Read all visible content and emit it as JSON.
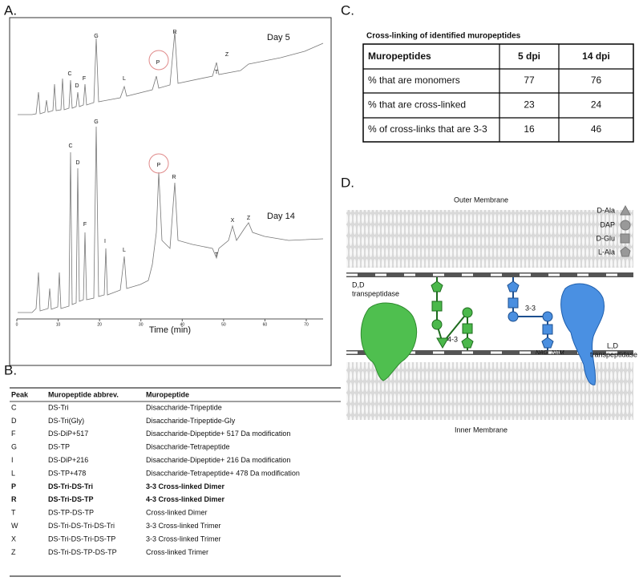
{
  "panel_a": {
    "label": "A.",
    "traces": [
      {
        "name": "Day 5",
        "peaks": [
          "C",
          "D",
          "F",
          "G",
          "L",
          "P",
          "R",
          "T",
          "Z"
        ]
      },
      {
        "name": "Day 14",
        "peaks": [
          "G",
          "C",
          "D",
          "P",
          "R",
          "F",
          "I",
          "L",
          "T",
          "X",
          "Z"
        ]
      }
    ],
    "x_axis": {
      "label": "Time (min)",
      "ticks": [
        0,
        10,
        20,
        30,
        40,
        50,
        60,
        70
      ]
    }
  },
  "panel_b": {
    "label": "B.",
    "headers": [
      "Peak",
      "Muropeptide abbrev.",
      "Muropeptide"
    ],
    "rows": [
      [
        "C",
        "DS-Tri",
        "Disaccharide-Tripeptide"
      ],
      [
        "D",
        "DS-Tri(Gly)",
        "Disaccharide-Tripeptide-Gly"
      ],
      [
        "F",
        "DS-DiP+517",
        "Disaccharide-Dipeptide+ 517 Da modification"
      ],
      [
        "G",
        "DS-TP",
        "Disaccharide-Tetrapeptide"
      ],
      [
        "I",
        "DS-DiP+216",
        "Disaccharide-Dipeptide+ 216 Da modification"
      ],
      [
        "L",
        "DS-TP+478",
        "Disaccharide-Tetrapeptide+ 478 Da modification"
      ],
      [
        "P",
        "DS-Tri-DS-Tri",
        "3-3 Cross-linked Dimer"
      ],
      [
        "R",
        "DS-Tri-DS-TP",
        "4-3 Cross-linked Dimer"
      ],
      [
        "T",
        "DS-TP-DS-TP",
        "Cross-linked Dimer"
      ],
      [
        "W",
        "DS-Tri-DS-Tri-DS-Tri",
        "3-3 Cross-linked Trimer"
      ],
      [
        "X",
        "DS-Tri-DS-Tri-DS-TP",
        "3-3 Cross-linked Trimer"
      ],
      [
        "Z",
        "DS-Tri-DS-TP-DS-TP",
        "Cross-linked Trimer"
      ]
    ],
    "bold_rows": [
      6,
      7
    ]
  },
  "panel_c": {
    "label": "C.",
    "title": "Cross-linking of identified muropeptides",
    "headers": [
      "Muropeptides",
      "5 dpi",
      "14 dpi"
    ],
    "rows": [
      [
        "% that are monomers",
        77,
        76
      ],
      [
        "% that are cross-linked",
        23,
        24
      ],
      [
        "% of cross-links that are 3-3",
        16,
        46
      ]
    ]
  },
  "panel_d": {
    "label": "D.",
    "outer_membrane": "Outer Membrane",
    "inner_membrane": "Inner Membrane",
    "legend": [
      "D-Ala",
      "DAP",
      "D-Glu",
      "L-Ala"
    ],
    "dd_enzyme": [
      "D,D",
      "transpeptidase"
    ],
    "ld_enzyme": [
      "L,D",
      "transpeptidase"
    ],
    "crosslink_43": "4-3",
    "crosslink_33": "3-3",
    "strand_labels": [
      "NAG",
      "NAM"
    ]
  }
}
